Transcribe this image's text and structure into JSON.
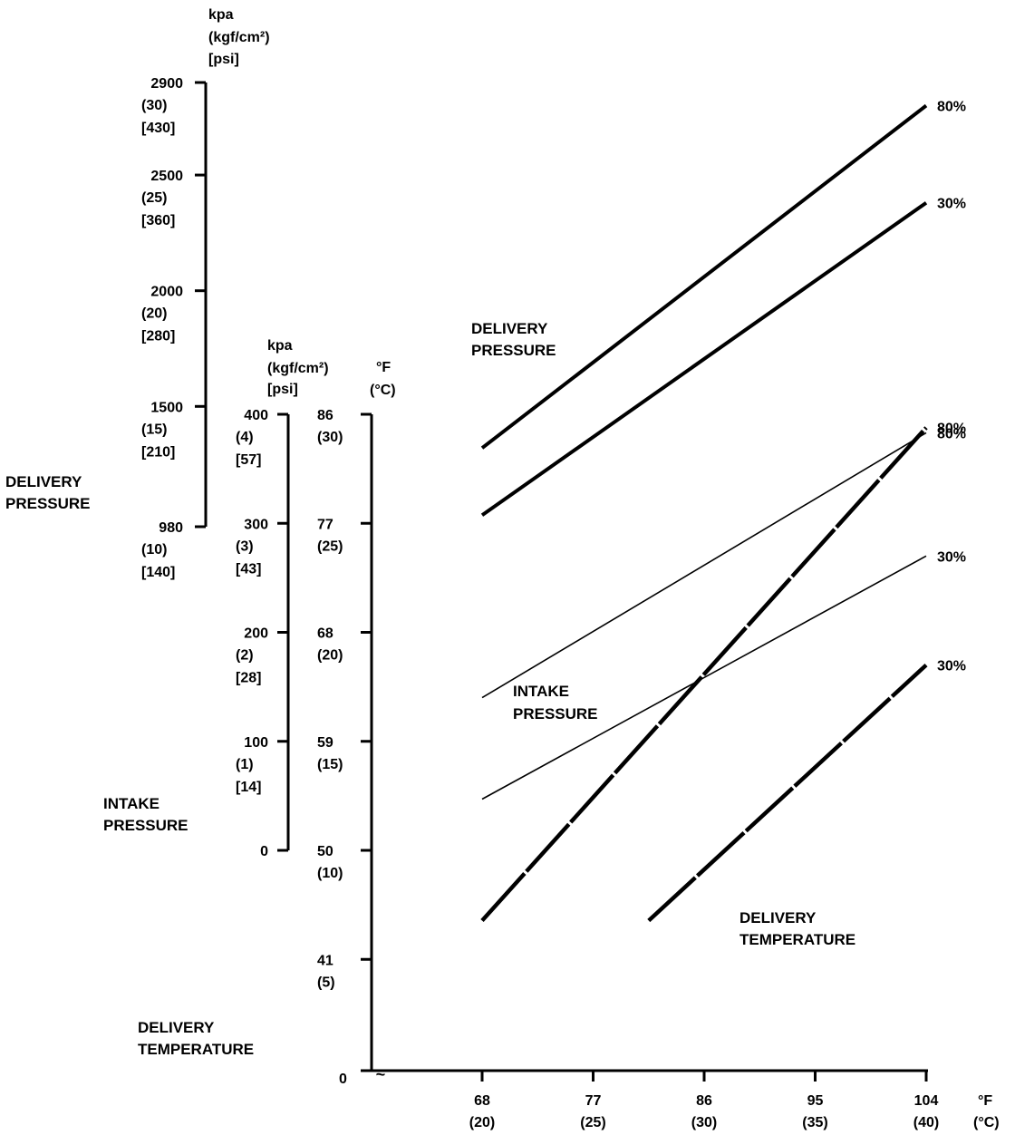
{
  "chart_data": {
    "type": "line",
    "x_axis": {
      "unit_labels": [
        "°F",
        "(°C)"
      ],
      "ticks": [
        {
          "f": 68,
          "c": 20
        },
        {
          "f": 77,
          "c": 25
        },
        {
          "f": 86,
          "c": 30
        },
        {
          "f": 95,
          "c": 35
        },
        {
          "f": 104,
          "c": 40
        }
      ],
      "range_f": [
        68,
        104
      ]
    },
    "delivery_pressure_axis": {
      "name": [
        "DELIVERY",
        "PRESSURE"
      ],
      "unit_labels": [
        "kpa",
        "(kgf/cm²)",
        "[psi]"
      ],
      "ticks": [
        {
          "kpa": 2900,
          "kgf": "(30)",
          "psi": "[430]"
        },
        {
          "kpa": 2500,
          "kgf": "(25)",
          "psi": "[360]"
        },
        {
          "kpa": 2000,
          "kgf": "(20)",
          "psi": "[280]"
        },
        {
          "kpa": 1500,
          "kgf": "(15)",
          "psi": "[210]"
        },
        {
          "kpa": 980,
          "kgf": "(10)",
          "psi": "[140]"
        }
      ]
    },
    "intake_pressure_axis": {
      "name": [
        "INTAKE",
        "PRESSURE"
      ],
      "unit_labels": [
        "kpa",
        "(kgf/cm²)",
        "[psi]"
      ],
      "ticks": [
        {
          "kpa": 400,
          "kgf": "(4)",
          "psi": "[57]"
        },
        {
          "kpa": 300,
          "kgf": "(3)",
          "psi": "[43]"
        },
        {
          "kpa": 200,
          "kgf": "(2)",
          "psi": "[28]"
        },
        {
          "kpa": 100,
          "kgf": "(1)",
          "psi": "[14]"
        },
        {
          "kpa": 0,
          "kgf": "",
          "psi": ""
        }
      ]
    },
    "delivery_temperature_axis": {
      "name": [
        "DELIVERY",
        "TEMPERATURE"
      ],
      "unit_labels": [
        "°F",
        "(°C)"
      ],
      "ticks": [
        {
          "f": "86",
          "c": "(30)"
        },
        {
          "f": "77",
          "c": "(25)"
        },
        {
          "f": "68",
          "c": "(20)"
        },
        {
          "f": "59",
          "c": "(15)"
        },
        {
          "f": "50",
          "c": "(10)"
        },
        {
          "f": "41",
          "c": "(5)"
        },
        {
          "f": "0",
          "c": ""
        }
      ]
    },
    "groups": [
      {
        "label": [
          "DELIVERY",
          "PRESSURE"
        ],
        "series": [
          {
            "name": "80%",
            "x_f": [
              68,
              104
            ],
            "y_kpa": [
              1320,
              2800
            ]
          },
          {
            "name": "30%",
            "x_f": [
              68,
              104
            ],
            "y_kpa": [
              1030,
              2380
            ]
          }
        ]
      },
      {
        "label": [
          "INTAKE",
          "PRESSURE"
        ],
        "series": [
          {
            "name": "80%",
            "x_f": [
              68,
              104
            ],
            "y_kpa": [
              140,
              383
            ]
          },
          {
            "name": "30%",
            "x_f": [
              68,
              104
            ],
            "y_kpa": [
              47,
              270
            ]
          }
        ]
      },
      {
        "label": [
          "DELIVERY",
          "TEMPERATURE"
        ],
        "series": [
          {
            "name": "80%",
            "x_f": [
              68,
              104
            ],
            "y_f": [
              44.2,
              84.9
            ]
          },
          {
            "name": "30%",
            "x_f": [
              81.5,
              104
            ],
            "y_f": [
              44.2,
              65.3
            ]
          }
        ]
      }
    ],
    "break_mark": "≈"
  }
}
